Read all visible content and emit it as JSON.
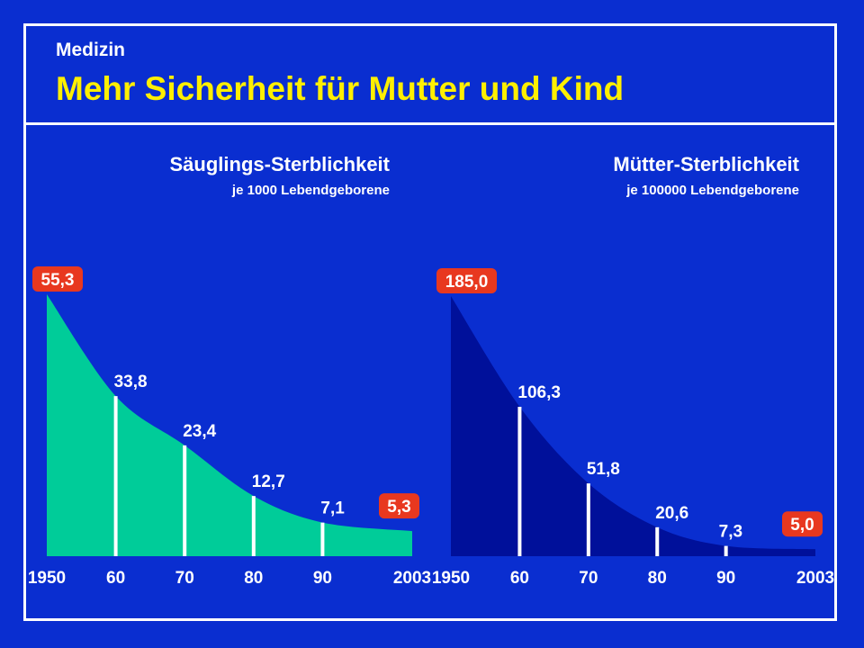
{
  "header": {
    "subtitle": "Medizin",
    "title": "Mehr Sicherheit für Mutter und Kind"
  },
  "colors": {
    "background": "#0a2ed0",
    "infant_fill": "#00cc99",
    "mother_fill": "#00109a",
    "badge": "#e8381f",
    "title": "#ffef00",
    "text": "#ffffff"
  },
  "chart_data": [
    {
      "type": "area",
      "title": "Säuglings-Sterblichkeit",
      "unit": "je 1000 Lebendgeborene",
      "x": [
        1950,
        1960,
        1970,
        1980,
        1990,
        2003
      ],
      "x_tick_labels": [
        "1950",
        "60",
        "70",
        "80",
        "90",
        "2003"
      ],
      "values": [
        55.3,
        33.8,
        23.4,
        12.7,
        7.1,
        5.3
      ],
      "value_labels": [
        "55,3",
        "33,8",
        "23,4",
        "12,7",
        "7,1",
        "5,3"
      ],
      "highlighted": [
        0,
        5
      ],
      "ylim": [
        0,
        55.3
      ]
    },
    {
      "type": "area",
      "title": "Mütter-Sterblichkeit",
      "unit": "je 100000 Lebendgeborene",
      "x": [
        1950,
        1960,
        1970,
        1980,
        1990,
        2003
      ],
      "x_tick_labels": [
        "1950",
        "60",
        "70",
        "80",
        "90",
        "2003"
      ],
      "values": [
        185.0,
        106.3,
        51.8,
        20.6,
        7.3,
        5.0
      ],
      "value_labels": [
        "185,0",
        "106,3",
        "51,8",
        "20,6",
        "7,3",
        "5,0"
      ],
      "highlighted": [
        0,
        5
      ],
      "ylim": [
        0,
        185.0
      ]
    }
  ]
}
